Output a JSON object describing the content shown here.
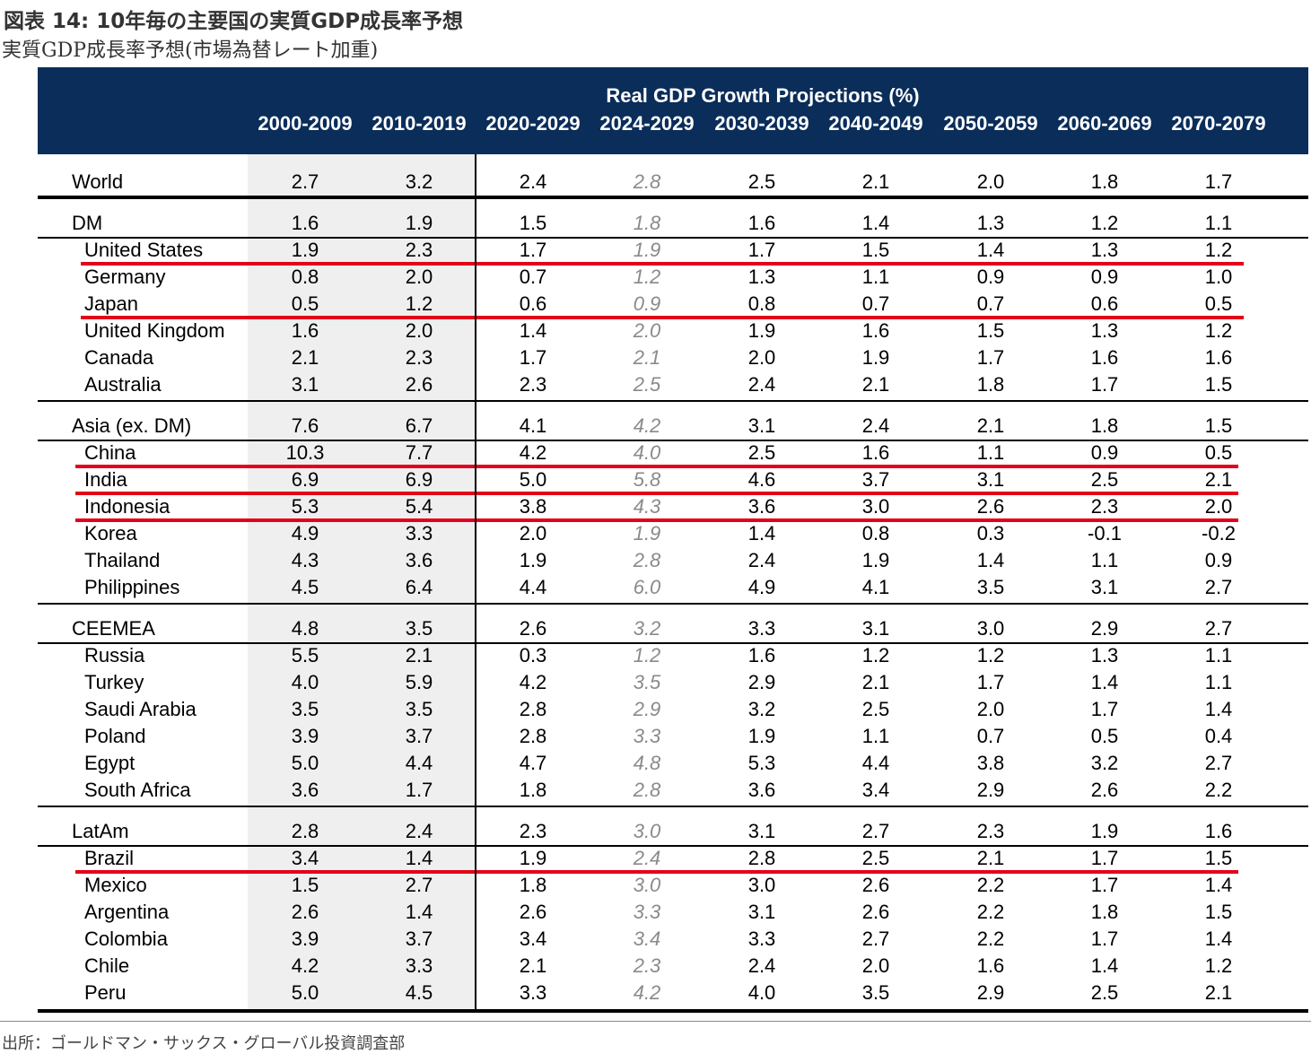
{
  "title": "図表 14: 10年毎の主要国の実質GDP成長率予想",
  "subtitle": "実質GDP成長率予想(市場為替レート加重)",
  "source": "出所：ゴールドマン・サックス・グローバル投資調査部",
  "colors": {
    "header_bg": "#0a2d5a",
    "shade": "#efefef",
    "highlight": "#e3001b",
    "italic_text": "#8a8a8a"
  },
  "chart_data": {
    "type": "table",
    "title": "Real GDP Growth Projections (%)",
    "columns": [
      "2000-2009",
      "2010-2019",
      "2020-2029",
      "2024-2029",
      "2030-2039",
      "2040-2049",
      "2050-2059",
      "2060-2069",
      "2070-2079"
    ],
    "rows": [
      {
        "name": "World",
        "group": true,
        "values": [
          "2.7",
          "3.2",
          "2.4",
          "2.8",
          "2.5",
          "2.1",
          "2.0",
          "1.8",
          "1.7"
        ]
      },
      {
        "name": "DM",
        "group": true,
        "values": [
          "1.6",
          "1.9",
          "1.5",
          "1.8",
          "1.6",
          "1.4",
          "1.3",
          "1.2",
          "1.1"
        ]
      },
      {
        "name": "United States",
        "group": false,
        "highlight": true,
        "values": [
          "1.9",
          "2.3",
          "1.7",
          "1.9",
          "1.7",
          "1.5",
          "1.4",
          "1.3",
          "1.2"
        ]
      },
      {
        "name": "Germany",
        "group": false,
        "values": [
          "0.8",
          "2.0",
          "0.7",
          "1.2",
          "1.3",
          "1.1",
          "0.9",
          "0.9",
          "1.0"
        ]
      },
      {
        "name": "Japan",
        "group": false,
        "highlight": true,
        "values": [
          "0.5",
          "1.2",
          "0.6",
          "0.9",
          "0.8",
          "0.7",
          "0.7",
          "0.6",
          "0.5"
        ]
      },
      {
        "name": "United Kingdom",
        "group": false,
        "values": [
          "1.6",
          "2.0",
          "1.4",
          "2.0",
          "1.9",
          "1.6",
          "1.5",
          "1.3",
          "1.2"
        ]
      },
      {
        "name": "Canada",
        "group": false,
        "values": [
          "2.1",
          "2.3",
          "1.7",
          "2.1",
          "2.0",
          "1.9",
          "1.7",
          "1.6",
          "1.6"
        ]
      },
      {
        "name": "Australia",
        "group": false,
        "values": [
          "3.1",
          "2.6",
          "2.3",
          "2.5",
          "2.4",
          "2.1",
          "1.8",
          "1.7",
          "1.5"
        ]
      },
      {
        "name": "Asia (ex. DM)",
        "group": true,
        "values": [
          "7.6",
          "6.7",
          "4.1",
          "4.2",
          "3.1",
          "2.4",
          "2.1",
          "1.8",
          "1.5"
        ]
      },
      {
        "name": "China",
        "group": false,
        "highlight": true,
        "values": [
          "10.3",
          "7.7",
          "4.2",
          "4.0",
          "2.5",
          "1.6",
          "1.1",
          "0.9",
          "0.5"
        ]
      },
      {
        "name": "India",
        "group": false,
        "highlight": true,
        "values": [
          "6.9",
          "6.9",
          "5.0",
          "5.8",
          "4.6",
          "3.7",
          "3.1",
          "2.5",
          "2.1"
        ]
      },
      {
        "name": "Indonesia",
        "group": false,
        "highlight": true,
        "values": [
          "5.3",
          "5.4",
          "3.8",
          "4.3",
          "3.6",
          "3.0",
          "2.6",
          "2.3",
          "2.0"
        ]
      },
      {
        "name": "Korea",
        "group": false,
        "values": [
          "4.9",
          "3.3",
          "2.0",
          "1.9",
          "1.4",
          "0.8",
          "0.3",
          "-0.1",
          "-0.2"
        ]
      },
      {
        "name": "Thailand",
        "group": false,
        "values": [
          "4.3",
          "3.6",
          "1.9",
          "2.8",
          "2.4",
          "1.9",
          "1.4",
          "1.1",
          "0.9"
        ]
      },
      {
        "name": "Philippines",
        "group": false,
        "values": [
          "4.5",
          "6.4",
          "4.4",
          "6.0",
          "4.9",
          "4.1",
          "3.5",
          "3.1",
          "2.7"
        ]
      },
      {
        "name": "CEEMEA",
        "group": true,
        "values": [
          "4.8",
          "3.5",
          "2.6",
          "3.2",
          "3.3",
          "3.1",
          "3.0",
          "2.9",
          "2.7"
        ]
      },
      {
        "name": "Russia",
        "group": false,
        "values": [
          "5.5",
          "2.1",
          "0.3",
          "1.2",
          "1.6",
          "1.2",
          "1.2",
          "1.3",
          "1.1"
        ]
      },
      {
        "name": "Turkey",
        "group": false,
        "values": [
          "4.0",
          "5.9",
          "4.2",
          "3.5",
          "2.9",
          "2.1",
          "1.7",
          "1.4",
          "1.1"
        ]
      },
      {
        "name": "Saudi Arabia",
        "group": false,
        "values": [
          "3.5",
          "3.5",
          "2.8",
          "2.9",
          "3.2",
          "2.5",
          "2.0",
          "1.7",
          "1.4"
        ]
      },
      {
        "name": "Poland",
        "group": false,
        "values": [
          "3.9",
          "3.7",
          "2.8",
          "3.3",
          "1.9",
          "1.1",
          "0.7",
          "0.5",
          "0.4"
        ]
      },
      {
        "name": "Egypt",
        "group": false,
        "values": [
          "5.0",
          "4.4",
          "4.7",
          "4.8",
          "5.3",
          "4.4",
          "3.8",
          "3.2",
          "2.7"
        ]
      },
      {
        "name": "South Africa",
        "group": false,
        "values": [
          "3.6",
          "1.7",
          "1.8",
          "2.8",
          "3.6",
          "3.4",
          "2.9",
          "2.6",
          "2.2"
        ]
      },
      {
        "name": "LatAm",
        "group": true,
        "values": [
          "2.8",
          "2.4",
          "2.3",
          "3.0",
          "3.1",
          "2.7",
          "2.3",
          "1.9",
          "1.6"
        ]
      },
      {
        "name": "Brazil",
        "group": false,
        "highlight": true,
        "values": [
          "3.4",
          "1.4",
          "1.9",
          "2.4",
          "2.8",
          "2.5",
          "2.1",
          "1.7",
          "1.5"
        ]
      },
      {
        "name": "Mexico",
        "group": false,
        "values": [
          "1.5",
          "2.7",
          "1.8",
          "3.0",
          "3.0",
          "2.6",
          "2.2",
          "1.7",
          "1.4"
        ]
      },
      {
        "name": "Argentina",
        "group": false,
        "values": [
          "2.6",
          "1.4",
          "2.6",
          "3.3",
          "3.1",
          "2.6",
          "2.2",
          "1.8",
          "1.5"
        ]
      },
      {
        "name": "Colombia",
        "group": false,
        "values": [
          "3.9",
          "3.7",
          "3.4",
          "3.4",
          "3.3",
          "2.7",
          "2.2",
          "1.7",
          "1.4"
        ]
      },
      {
        "name": "Chile",
        "group": false,
        "values": [
          "4.2",
          "3.3",
          "2.1",
          "2.3",
          "2.4",
          "2.0",
          "1.6",
          "1.4",
          "1.2"
        ]
      },
      {
        "name": "Peru",
        "group": false,
        "values": [
          "5.0",
          "4.5",
          "3.3",
          "4.2",
          "4.0",
          "3.5",
          "2.9",
          "2.5",
          "2.1"
        ]
      }
    ]
  }
}
